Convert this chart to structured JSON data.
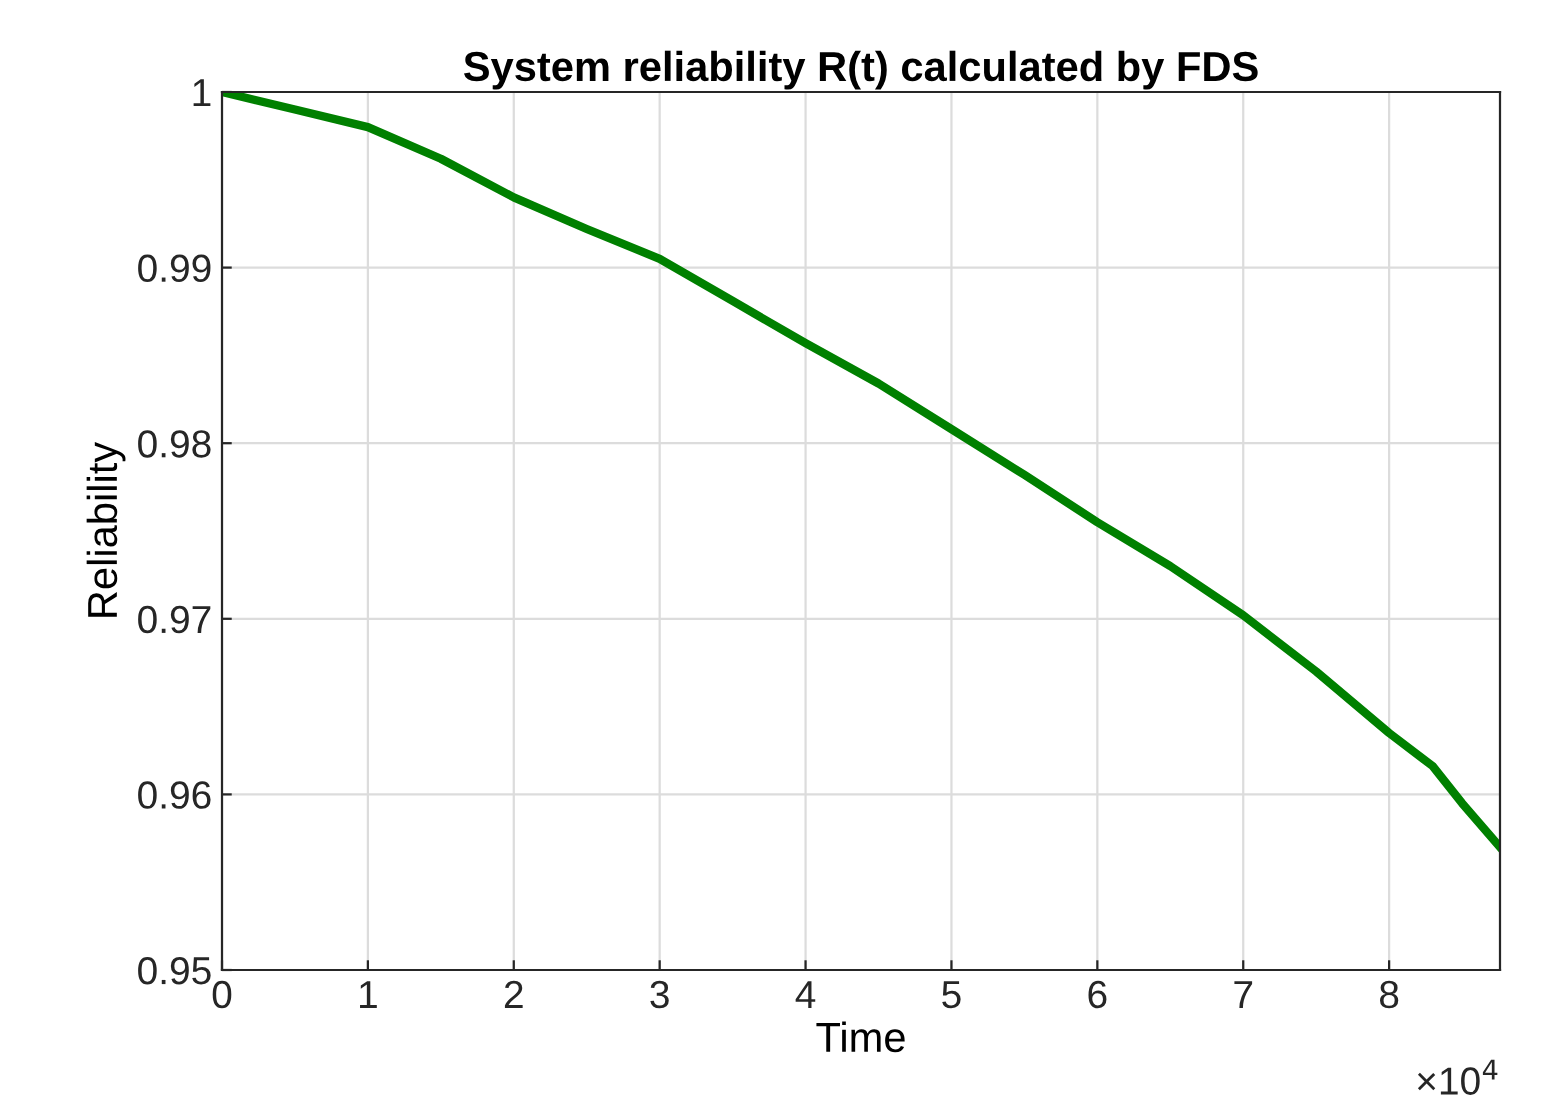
{
  "chart_data": {
    "type": "line",
    "title": "System reliability R(t) calculated by FDS",
    "xlabel": "Time",
    "ylabel": "Reliability",
    "x": [
      0,
      0.5,
      1,
      1.5,
      2,
      2.5,
      3,
      3.5,
      4,
      4.5,
      5,
      5.5,
      6,
      6.5,
      7,
      7.5,
      8,
      8.3,
      8.5,
      8.76
    ],
    "series": [
      {
        "color": "#008000",
        "values": [
          1.0,
          0.999,
          0.998,
          0.9962,
          0.994,
          0.9922,
          0.9905,
          0.9881,
          0.9857,
          0.9834,
          0.9808,
          0.9782,
          0.9755,
          0.973,
          0.9702,
          0.967,
          0.9635,
          0.9616,
          0.9595,
          0.957
        ]
      }
    ],
    "xlim": [
      0,
      8.76
    ],
    "xticks": [
      0,
      1,
      2,
      3,
      4,
      5,
      6,
      7,
      8
    ],
    "annotations": [
      "×10$^{4}$"
    ],
    "ylim": [
      0.95,
      1
    ],
    "yticks": [
      0.95,
      0.96,
      0.97,
      0.98,
      0.99,
      1
    ],
    "grid": true,
    "legend": false,
    "marker": "none",
    "line_style": "solid"
  }
}
